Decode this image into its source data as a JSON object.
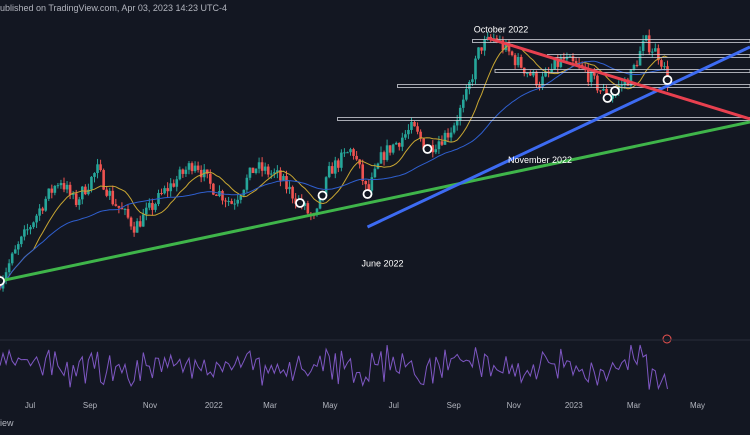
{
  "header": {
    "published_text": "ublished on TradingView.com, Apr 03, 2023 14:23 UTC-4"
  },
  "footer": {
    "text": "iew"
  },
  "colors": {
    "background": "#131722",
    "candle_up": "#26a69a",
    "candle_down": "#ef5350",
    "ma_fast": "#c8a632",
    "ma_slow": "#2f5fcf",
    "support_blue": "#3d6bf2",
    "support_green": "#3fb54a",
    "resistance_red": "#e8404f",
    "horizontal_level": "#d0d3da",
    "rsi_line": "#7e57c2",
    "label_text": "#ffffff",
    "axis_text": "#b2b5be",
    "event_marker": "#ef5350"
  },
  "chart_data": {
    "type": "candlestick",
    "title": "",
    "xlabel": "",
    "ylabel": "",
    "x_ticks": [
      "Jul",
      "Sep",
      "Nov",
      "2022",
      "Mar",
      "May",
      "Jul",
      "Sep",
      "Nov",
      "2023",
      "Mar",
      "May"
    ],
    "annotations": [
      {
        "text": "October 2022"
      },
      {
        "text": "November 2022"
      },
      {
        "text": "June 2022"
      }
    ],
    "price_path_relative": [
      {
        "t": 0.0,
        "v": 0.18
      },
      {
        "t": 0.03,
        "v": 0.32
      },
      {
        "t": 0.06,
        "v": 0.45
      },
      {
        "t": 0.08,
        "v": 0.52
      },
      {
        "t": 0.1,
        "v": 0.44
      },
      {
        "t": 0.13,
        "v": 0.55
      },
      {
        "t": 0.15,
        "v": 0.45
      },
      {
        "t": 0.18,
        "v": 0.36
      },
      {
        "t": 0.22,
        "v": 0.48
      },
      {
        "t": 0.26,
        "v": 0.58
      },
      {
        "t": 0.28,
        "v": 0.5
      },
      {
        "t": 0.31,
        "v": 0.44
      },
      {
        "t": 0.34,
        "v": 0.56
      },
      {
        "t": 0.37,
        "v": 0.53
      },
      {
        "t": 0.4,
        "v": 0.44
      },
      {
        "t": 0.42,
        "v": 0.38
      },
      {
        "t": 0.44,
        "v": 0.55
      },
      {
        "t": 0.47,
        "v": 0.62
      },
      {
        "t": 0.49,
        "v": 0.47
      },
      {
        "t": 0.51,
        "v": 0.6
      },
      {
        "t": 0.55,
        "v": 0.69
      },
      {
        "t": 0.57,
        "v": 0.62
      },
      {
        "t": 0.6,
        "v": 0.68
      },
      {
        "t": 0.62,
        "v": 0.78
      },
      {
        "t": 0.64,
        "v": 0.96
      },
      {
        "t": 0.66,
        "v": 0.99
      },
      {
        "t": 0.69,
        "v": 0.91
      },
      {
        "t": 0.72,
        "v": 0.84
      },
      {
        "t": 0.75,
        "v": 0.92
      },
      {
        "t": 0.78,
        "v": 0.88
      },
      {
        "t": 0.81,
        "v": 0.79
      },
      {
        "t": 0.84,
        "v": 0.86
      },
      {
        "t": 0.86,
        "v": 0.98
      },
      {
        "t": 0.88,
        "v": 0.93
      },
      {
        "t": 0.89,
        "v": 0.85
      }
    ],
    "horizontal_levels": [
      {
        "value_rel": 0.98,
        "start_t": 0.63
      },
      {
        "value_rel": 0.93,
        "start_t": 0.73
      },
      {
        "value_rel": 0.88,
        "start_t": 0.66
      },
      {
        "value_rel": 0.83,
        "start_t": 0.53
      },
      {
        "value_rel": 0.72,
        "start_t": 0.45
      }
    ],
    "trendlines": [
      {
        "name": "green_support",
        "from": {
          "t": 0.0,
          "v": 0.18
        },
        "to": {
          "t": 1.0,
          "v": 0.71
        }
      },
      {
        "name": "blue_support",
        "from": {
          "t": 0.49,
          "v": 0.36
        },
        "to": {
          "t": 1.0,
          "v": 0.96
        }
      },
      {
        "name": "red_resistance",
        "from": {
          "t": 0.65,
          "v": 0.99
        },
        "to": {
          "t": 1.0,
          "v": 0.72
        }
      }
    ],
    "pivot_points_t": [
      0.0,
      0.4,
      0.43,
      0.49,
      0.57,
      0.81,
      0.82,
      0.89
    ],
    "rsi": {
      "visible": true
    },
    "grid": false
  }
}
